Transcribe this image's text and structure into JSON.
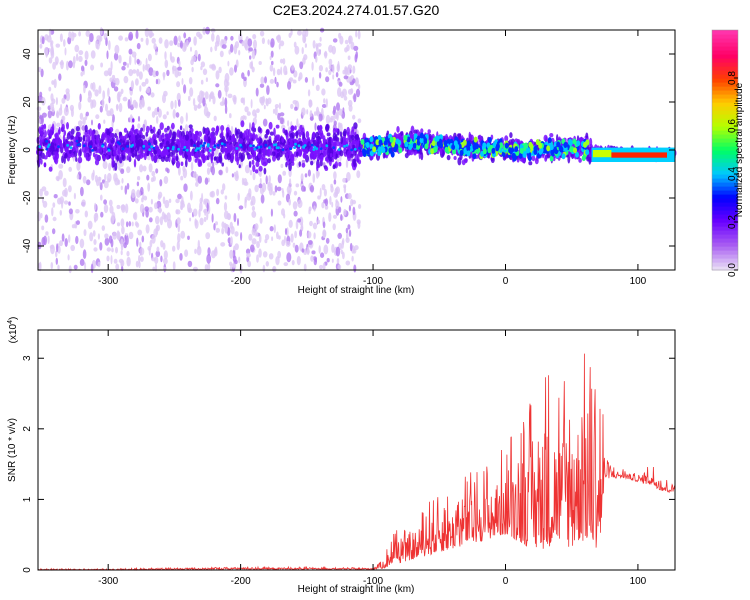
{
  "figure": {
    "title": "C2E3.2024.274.01.57.G20"
  },
  "chart_data": [
    {
      "type": "heatmap",
      "xlabel": "Height of straight line (km)",
      "ylabel": "Frequency (Hz)",
      "xlim": [
        -353,
        128
      ],
      "ylim": [
        -50,
        50
      ],
      "xticks": [
        -300,
        -200,
        -100,
        0,
        100
      ],
      "yticks": [
        -40,
        -20,
        0,
        20,
        40
      ],
      "colorbar": {
        "label": "Normalized spectral amplitude",
        "range": [
          0,
          1
        ],
        "ticks": [
          "0.0",
          "0.2",
          "0.4",
          "0.6",
          "0.8"
        ],
        "colors": [
          "#e6d9f5",
          "#a85cf2",
          "#6a00ff",
          "#0000ff",
          "#00c8ff",
          "#00ff64",
          "#b4ff00",
          "#ffcc00",
          "#ff4000",
          "#ff0066",
          "#ff33aa"
        ]
      },
      "description_points": {
        "band_center_hz": [
          [
            -353,
            2
          ],
          [
            -110,
            1
          ],
          [
            -60,
            3
          ],
          [
            -30,
            1
          ],
          [
            0,
            0
          ],
          [
            30,
            0
          ],
          [
            60,
            1
          ],
          [
            65,
            -1
          ],
          [
            128,
            -2
          ]
        ],
        "noise_field_x_range": [
          -353,
          -110
        ],
        "high_amplitude_x_range": [
          80,
          122
        ]
      }
    },
    {
      "type": "line",
      "xlabel": "Height of straight line (km)",
      "ylabel": "SNR (10 * v/v)",
      "yscale_label": "(x10",
      "yscale_exp": "4",
      "xlim": [
        -353,
        128
      ],
      "ylim": [
        0,
        3.4
      ],
      "xticks": [
        -300,
        -200,
        -100,
        0,
        100
      ],
      "yticks": [
        0,
        1,
        2,
        3
      ],
      "series": [
        {
          "color": "#ee3333",
          "envelope": {
            "x": [
              -353,
              -300,
              -200,
              -100,
              -90,
              -85,
              -80,
              -70,
              -60,
              -50,
              -40,
              -30,
              -20,
              -10,
              0,
              10,
              20,
              30,
              40,
              50,
              55,
              60,
              70,
              73,
              75,
              80,
              90,
              100,
              110,
              120,
              128
            ],
            "high": [
              0.02,
              0.02,
              0.05,
              0.03,
              0.3,
              0.65,
              0.6,
              0.55,
              1.0,
              1.05,
              1.2,
              1.4,
              1.5,
              1.6,
              1.8,
              2.4,
              2.5,
              3.0,
              3.0,
              3.1,
              3.35,
              3.1,
              3.0,
              2.9,
              1.6,
              1.5,
              1.45,
              1.35,
              1.55,
              1.3,
              1.3
            ],
            "low": [
              0.0,
              0.0,
              0.01,
              0.01,
              0.03,
              0.1,
              0.1,
              0.15,
              0.2,
              0.25,
              0.3,
              0.35,
              0.4,
              0.45,
              0.5,
              0.4,
              0.3,
              0.3,
              0.4,
              0.3,
              0.4,
              0.4,
              0.3,
              0.5,
              1.3,
              1.3,
              1.3,
              1.25,
              1.2,
              1.1,
              1.1
            ]
          }
        }
      ]
    }
  ]
}
